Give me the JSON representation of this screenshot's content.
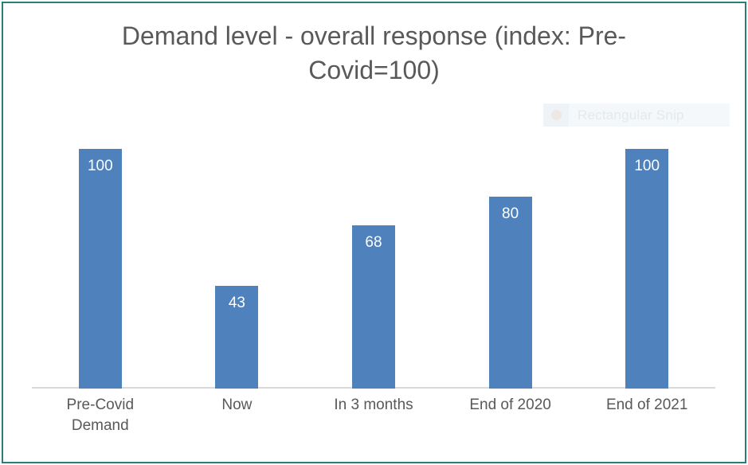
{
  "chart_data": {
    "type": "bar",
    "title": "Demand level - overall response (index: Pre-Covid=100)",
    "categories": [
      "Pre-Covid Demand",
      "Now",
      "In 3 months",
      "End of 2020",
      "End of 2021"
    ],
    "values": [
      100,
      43,
      68,
      80,
      100
    ],
    "xlabel": "",
    "ylabel": "",
    "ylim": [
      0,
      110
    ],
    "gridlines": false,
    "legend": "none",
    "data_labels_position": "inside-end",
    "bar_color": "#4f81bd",
    "data_label_color": "#ffffff",
    "axis_line_color": "#d9d9d9",
    "title_color": "#595959"
  },
  "overlay": {
    "snip_toast": {
      "label": "Rectangular Snip",
      "icon": "record-circle-icon",
      "background": "#f4f8fb",
      "text_color": "#e3e9ec"
    }
  },
  "colors": {
    "frame_border": "#2b7d7d",
    "background": "#ffffff"
  }
}
